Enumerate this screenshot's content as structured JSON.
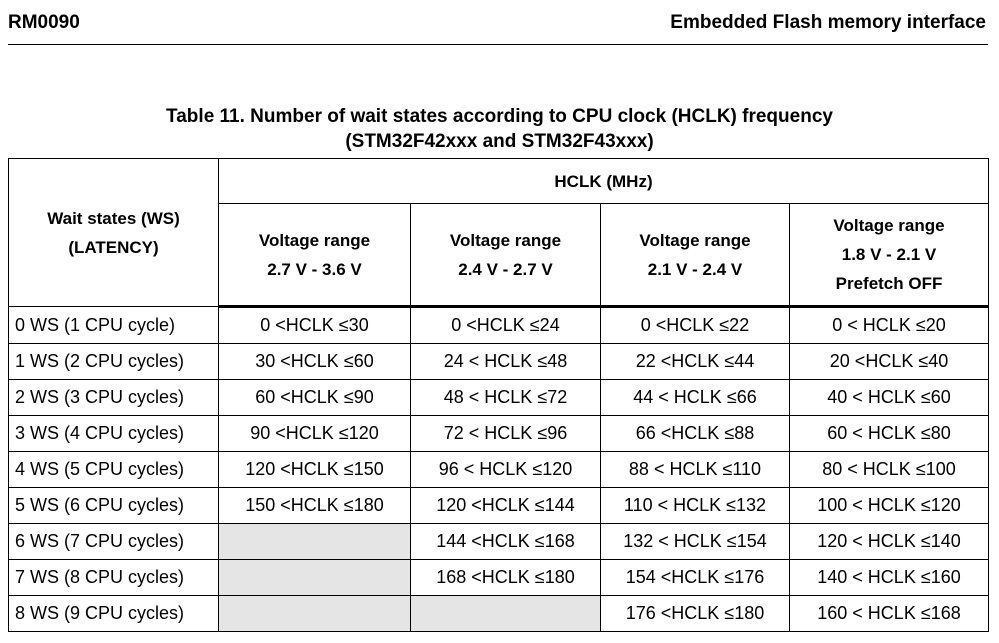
{
  "header": {
    "doc_id": "RM0090",
    "section": "Embedded Flash memory interface"
  },
  "caption": {
    "line1": "Table 11. Number of wait states according to CPU clock (HCLK) frequency",
    "line2": "(STM32F42xxx and STM32F43xxx)"
  },
  "table": {
    "ws_header": {
      "line1": "Wait states (WS)",
      "line2": "(LATENCY)"
    },
    "hclk_header": "HCLK (MHz)",
    "voltage_headers": [
      {
        "line1": "Voltage range",
        "line2": "2.7 V - 3.6 V",
        "line3": ""
      },
      {
        "line1": "Voltage range",
        "line2": "2.4 V - 2.7 V",
        "line3": ""
      },
      {
        "line1": "Voltage range",
        "line2": "2.1 V - 2.4 V",
        "line3": ""
      },
      {
        "line1": "Voltage range",
        "line2": "1.8 V - 2.1 V",
        "line3": "Prefetch OFF"
      }
    ],
    "rows": [
      {
        "label": "0 WS (1 CPU cycle)",
        "cells": [
          "0 <HCLK ≤30",
          "0 <HCLK ≤24",
          "0 <HCLK ≤22",
          "0 < HCLK ≤20"
        ]
      },
      {
        "label": "1 WS (2 CPU cycles)",
        "cells": [
          "30 <HCLK ≤60",
          "24 < HCLK ≤48",
          "22 <HCLK ≤44",
          "20 <HCLK ≤40"
        ]
      },
      {
        "label": "2 WS (3 CPU cycles)",
        "cells": [
          "60 <HCLK ≤90",
          "48 < HCLK ≤72",
          "44 < HCLK ≤66",
          "40 < HCLK ≤60"
        ]
      },
      {
        "label": "3 WS (4 CPU cycles)",
        "cells": [
          "90 <HCLK ≤120",
          "72 < HCLK ≤96",
          "66 <HCLK ≤88",
          "60 < HCLK ≤80"
        ]
      },
      {
        "label": "4 WS (5 CPU cycles)",
        "cells": [
          "120 <HCLK ≤150",
          "96 < HCLK ≤120",
          "88 < HCLK ≤110",
          "80 < HCLK ≤100"
        ]
      },
      {
        "label": "5 WS (6 CPU cycles)",
        "cells": [
          "150 <HCLK ≤180",
          "120 <HCLK ≤144",
          "110 < HCLK ≤132",
          "100 < HCLK ≤120"
        ]
      },
      {
        "label": "6 WS (7 CPU cycles)",
        "cells": [
          "",
          "144 <HCLK ≤168",
          "132 < HCLK ≤154",
          "120 < HCLK ≤140"
        ]
      },
      {
        "label": "7 WS (8 CPU cycles)",
        "cells": [
          "",
          "168 <HCLK ≤180",
          "154 <HCLK ≤176",
          "140 < HCLK ≤160"
        ]
      },
      {
        "label": "8 WS (9 CPU cycles)",
        "cells": [
          "",
          "",
          "176 <HCLK ≤180",
          "160 < HCLK ≤168"
        ]
      }
    ]
  }
}
